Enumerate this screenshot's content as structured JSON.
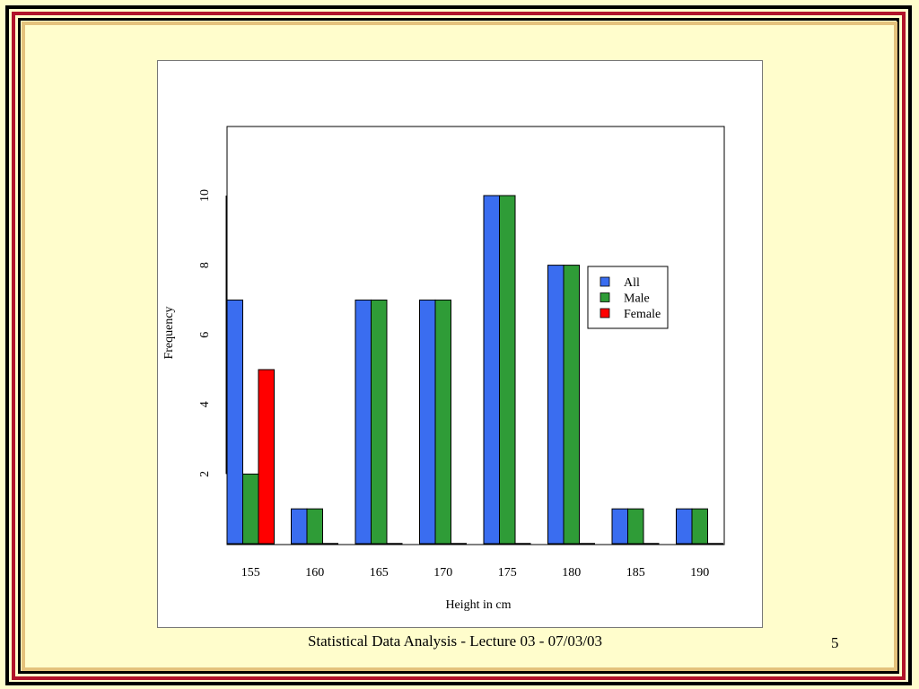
{
  "slide": {
    "footer": "Statistical Data Analysis - Lecture 03 - 07/03/03",
    "page_number": "5"
  },
  "chart_data": {
    "type": "bar",
    "title": "",
    "xlabel": "Height in cm",
    "ylabel": "Frequency",
    "categories": [
      "155",
      "160",
      "165",
      "170",
      "175",
      "180",
      "185",
      "190"
    ],
    "series": [
      {
        "name": "All",
        "color": "#3a6df0",
        "values": [
          7,
          1,
          7,
          7,
          10,
          8,
          1,
          1
        ]
      },
      {
        "name": "Male",
        "color": "#2f9c37",
        "values": [
          2,
          1,
          7,
          7,
          10,
          8,
          1,
          1
        ]
      },
      {
        "name": "Female",
        "color": "#ff0000",
        "values": [
          5,
          0,
          0,
          0,
          0,
          0,
          0,
          0
        ]
      }
    ],
    "yticks": [
      "2",
      "4",
      "6",
      "8",
      "10"
    ],
    "ylim": [
      0,
      12
    ],
    "legend_position": "right",
    "grid": false
  }
}
